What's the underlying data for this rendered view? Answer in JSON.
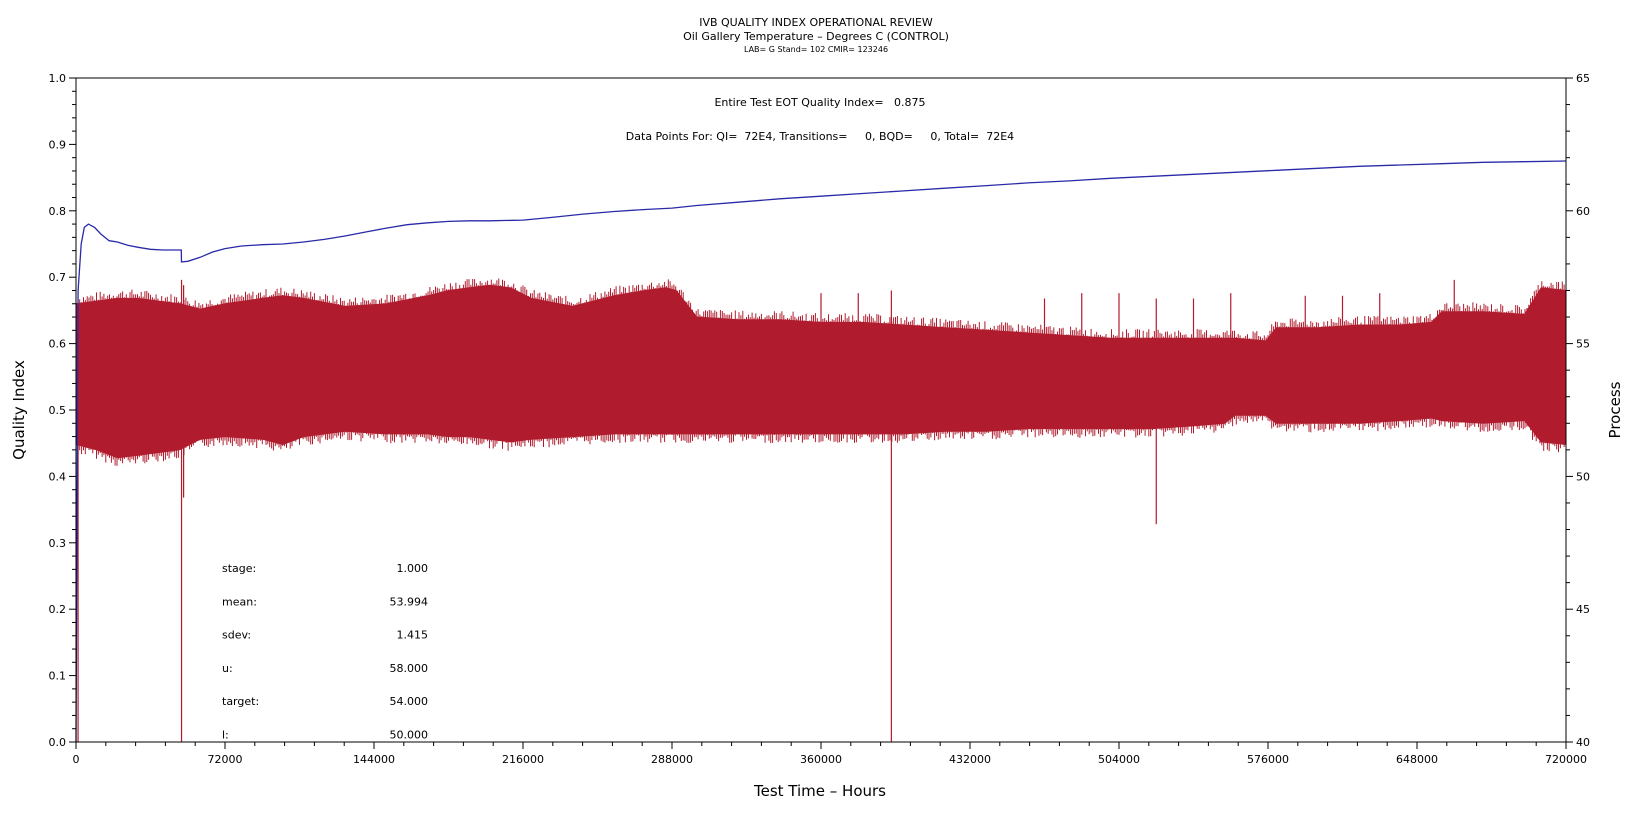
{
  "titles": {
    "line1": "IVB QUALITY INDEX OPERATIONAL REVIEW",
    "line2": "Oil Gallery Temperature – Degrees C (CONTROL)",
    "line3": "LAB= G Stand= 102 CMIR= 123246"
  },
  "annotations": {
    "eot": "Entire Test EOT Quality Index=   0.875",
    "points": "Data Points For: QI=  72E4, Transitions=     0, BQD=     0, Total=  72E4"
  },
  "stats": [
    {
      "label": "stage:",
      "value": "1.000"
    },
    {
      "label": "mean:",
      "value": "53.994"
    },
    {
      "label": "sdev:",
      "value": "1.415"
    },
    {
      "label": "u:",
      "value": "58.000"
    },
    {
      "label": "target:",
      "value": "54.000"
    },
    {
      "label": "l:",
      "value": "50.000"
    }
  ],
  "colors": {
    "quality_index": "#2a2aa8",
    "process": "#b01c2e",
    "axis": "#000000"
  },
  "chart_data": {
    "type": "line",
    "title": "IVB QUALITY INDEX OPERATIONAL REVIEW",
    "subtitle": "Oil Gallery Temperature – Degrees C (CONTROL)",
    "xlabel": "Test Time – Hours",
    "ylabel": "Quality Index",
    "y2label": "Process",
    "xlim": [
      0,
      720000
    ],
    "ylim": [
      0,
      1.0
    ],
    "y2lim": [
      40,
      65
    ],
    "x_ticks": [
      "0",
      "72000",
      "144000",
      "216000",
      "288000",
      "360000",
      "432000",
      "504000",
      "576000",
      "648000",
      "720000"
    ],
    "y_ticks": [
      "0.0",
      "0.1",
      "0.2",
      "0.3",
      "0.4",
      "0.5",
      "0.6",
      "0.7",
      "0.8",
      "0.9",
      "1.0"
    ],
    "y2_ticks": [
      "40",
      "45",
      "50",
      "55",
      "60",
      "65"
    ],
    "grid": false,
    "series": [
      {
        "axis": "left",
        "x": [
          0,
          1000,
          2500,
          4000,
          6000,
          9000,
          12000,
          16000,
          20000,
          25000,
          30000,
          36000,
          42000,
          48000,
          50900,
          51000,
          54000,
          60000,
          66000,
          72000,
          80000,
          90000,
          100000,
          110000,
          120000,
          130000,
          140000,
          150000,
          160000,
          170000,
          180000,
          190000,
          200000,
          216000,
          230000,
          245000,
          260000,
          275000,
          288000,
          300000,
          320000,
          340000,
          360000,
          380000,
          400000,
          420000,
          440000,
          460000,
          480000,
          500000,
          520000,
          540000,
          560000,
          580000,
          600000,
          620000,
          640000,
          660000,
          680000,
          700000,
          720000
        ],
        "values": [
          0.0,
          0.68,
          0.75,
          0.775,
          0.78,
          0.775,
          0.765,
          0.755,
          0.753,
          0.748,
          0.745,
          0.742,
          0.741,
          0.741,
          0.741,
          0.723,
          0.724,
          0.73,
          0.738,
          0.743,
          0.747,
          0.749,
          0.75,
          0.753,
          0.757,
          0.762,
          0.768,
          0.774,
          0.779,
          0.782,
          0.784,
          0.785,
          0.785,
          0.786,
          0.79,
          0.795,
          0.799,
          0.802,
          0.804,
          0.808,
          0.813,
          0.818,
          0.822,
          0.826,
          0.83,
          0.834,
          0.838,
          0.842,
          0.845,
          0.849,
          0.852,
          0.855,
          0.858,
          0.861,
          0.864,
          0.867,
          0.869,
          0.871,
          0.873,
          0.874,
          0.875
        ]
      },
      {
        "axis": "right",
        "band_x": [
          0,
          10000,
          20000,
          30000,
          40000,
          50000,
          60000,
          72000,
          90000,
          100000,
          110000,
          130000,
          150000,
          170000,
          180000,
          190000,
          200000,
          210000,
          220000,
          240000,
          260000,
          275000,
          285000,
          290000,
          300000,
          320000,
          340000,
          360000,
          380000,
          400000,
          420000,
          440000,
          460000,
          480000,
          500000,
          520000,
          540000,
          555000,
          560000,
          575000,
          580000,
          600000,
          620000,
          640000,
          655000,
          660000,
          680000,
          700000,
          708000,
          720000
        ],
        "band_min": [
          51.2,
          51.0,
          50.7,
          50.8,
          50.9,
          51.0,
          51.4,
          51.5,
          51.4,
          51.2,
          51.5,
          51.7,
          51.6,
          51.6,
          51.5,
          51.5,
          51.4,
          51.3,
          51.4,
          51.5,
          51.6,
          51.6,
          51.6,
          51.6,
          51.6,
          51.6,
          51.6,
          51.6,
          51.6,
          51.6,
          51.7,
          51.7,
          51.8,
          51.8,
          51.8,
          51.8,
          51.9,
          52.0,
          52.3,
          52.3,
          52.0,
          52.0,
          52.0,
          52.1,
          52.2,
          52.1,
          52.0,
          52.1,
          51.3,
          51.2
        ],
        "band_max": [
          56.5,
          56.6,
          56.7,
          56.7,
          56.6,
          56.5,
          56.3,
          56.5,
          56.7,
          56.8,
          56.7,
          56.4,
          56.5,
          56.8,
          57.0,
          57.1,
          57.2,
          57.1,
          56.7,
          56.4,
          56.8,
          57.0,
          57.1,
          57.0,
          56.0,
          55.9,
          55.9,
          55.8,
          55.8,
          55.7,
          55.6,
          55.5,
          55.4,
          55.3,
          55.2,
          55.2,
          55.2,
          55.2,
          55.2,
          55.1,
          55.6,
          55.6,
          55.7,
          55.7,
          55.8,
          56.2,
          56.2,
          56.1,
          57.1,
          57.0
        ],
        "spikes_down": [
          [
            1000,
            40.0
          ],
          [
            51000,
            40.0
          ],
          [
            52000,
            49.2
          ],
          [
            394000,
            40.0
          ],
          [
            522000,
            48.2
          ]
        ],
        "spikes_up": [
          [
            51000,
            57.4
          ],
          [
            52000,
            57.2
          ],
          [
            360000,
            56.9
          ],
          [
            378000,
            56.9
          ],
          [
            394000,
            57.0
          ],
          [
            468000,
            56.7
          ],
          [
            486000,
            56.9
          ],
          [
            504000,
            56.9
          ],
          [
            522000,
            56.7
          ],
          [
            540000,
            56.7
          ],
          [
            558000,
            56.9
          ],
          [
            594000,
            56.8
          ],
          [
            612000,
            56.8
          ],
          [
            630000,
            56.9
          ],
          [
            666000,
            57.4
          ]
        ]
      }
    ]
  }
}
